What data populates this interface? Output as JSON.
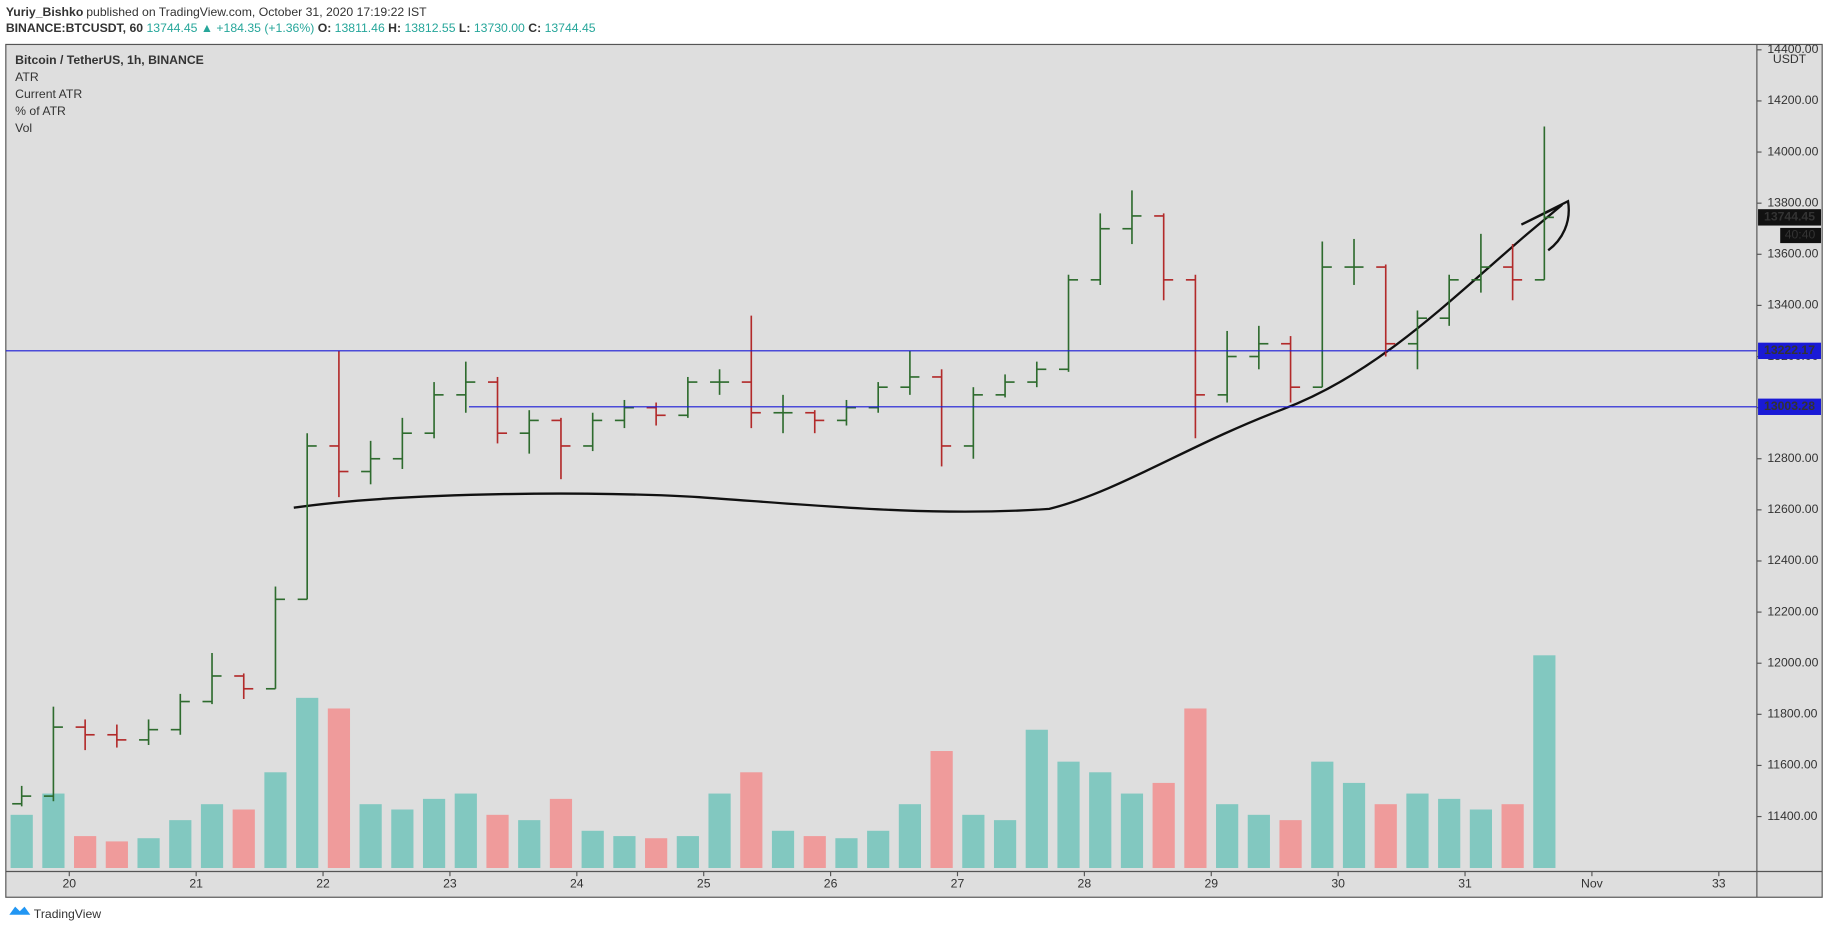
{
  "chart_data": {
    "type": "ohlc",
    "author": "Yuriy_Bishko",
    "published": "published on TradingView.com, October 31, 2020 17:19:22 IST",
    "symbol": "BINANCE:BTCUSDT, 60",
    "last_price": "13744.45",
    "change": "▲ +184.35 (+1.36%)",
    "ohlc_labels": [
      "O:",
      "13811.46",
      "H:",
      "13812.55",
      "L:",
      "13730.00",
      "C:",
      "13744.45"
    ],
    "legend": [
      "Bitcoin / TetherUS, 1h, BINANCE",
      "ATR",
      "Current ATR",
      "% of ATR",
      "Vol"
    ],
    "currency": "USDT",
    "countdown": "40:40",
    "brand": "TradingView",
    "levels": [
      {
        "value": 13222.17,
        "label": "13222.17",
        "color": "#1a1ad6",
        "from": 19.5
      },
      {
        "value": 13003.28,
        "label": "13003.28",
        "color": "#1a1ad6",
        "from": 23.15
      }
    ],
    "last_marker": {
      "value": 13744.45,
      "label": "13744.45"
    },
    "up_color": "#2e6b2e",
    "down_color": "#b22a2a",
    "vol_up_color": "#82c8c0",
    "vol_down_color": "#ef9b9b",
    "x": [
      19.5,
      19.75,
      20,
      20.25,
      20.5,
      20.75,
      21,
      21.25,
      21.5,
      21.75,
      22,
      22.25,
      22.5,
      22.75,
      23,
      23.25,
      23.5,
      23.75,
      24,
      24.25,
      24.5,
      24.75,
      25,
      25.25,
      25.5,
      25.75,
      26,
      26.25,
      26.5,
      26.75,
      27,
      27.25,
      27.5,
      27.75,
      28,
      28.25,
      28.5,
      28.75,
      29,
      29.25,
      29.5,
      29.75,
      30,
      30.25,
      30.5,
      30.75,
      31,
      31.25,
      31.5
    ],
    "open": [
      11450,
      11480,
      11750,
      11720,
      11700,
      11740,
      11850,
      11950,
      11900,
      12250,
      12850,
      12750,
      12800,
      12900,
      13050,
      13100,
      12900,
      12950,
      12850,
      12950,
      13000,
      12970,
      13100,
      13100,
      12980,
      12980,
      12950,
      13000,
      13080,
      13120,
      12850,
      13050,
      13100,
      13150,
      13500,
      13700,
      13750,
      13500,
      13050,
      13200,
      13250,
      13080,
      13550,
      13550,
      13250,
      13350,
      13500,
      13550,
      13500
    ],
    "high": [
      11520,
      11830,
      11780,
      11760,
      11780,
      11880,
      12040,
      11960,
      12300,
      12900,
      13222,
      12870,
      12960,
      13100,
      13180,
      13120,
      12990,
      12960,
      12980,
      13030,
      13020,
      13120,
      13150,
      13360,
      13050,
      12990,
      13030,
      13100,
      13222,
      13150,
      13080,
      13130,
      13180,
      13520,
      13760,
      13850,
      13760,
      13520,
      13300,
      13320,
      13280,
      13650,
      13660,
      13560,
      13380,
      13520,
      13680,
      13640,
      14100
    ],
    "low": [
      11440,
      11460,
      11660,
      11670,
      11680,
      11720,
      11840,
      11860,
      11900,
      12250,
      12650,
      12700,
      12760,
      12880,
      12980,
      12860,
      12820,
      12720,
      12830,
      12920,
      12930,
      12960,
      13050,
      12920,
      12900,
      12900,
      12930,
      12980,
      13050,
      12770,
      12800,
      13040,
      13080,
      13140,
      13480,
      13640,
      13420,
      12880,
      13020,
      13150,
      13020,
      13080,
      13480,
      13200,
      13150,
      13320,
      13450,
      13420,
      13500
    ],
    "close": [
      11480,
      11750,
      11720,
      11700,
      11740,
      11850,
      11950,
      11900,
      12250,
      12850,
      12750,
      12800,
      12900,
      13050,
      13100,
      12900,
      12950,
      12850,
      12950,
      13000,
      12970,
      13100,
      13100,
      12980,
      12980,
      12950,
      13000,
      13080,
      13120,
      12850,
      13050,
      13100,
      13150,
      13500,
      13700,
      13750,
      13500,
      13050,
      13200,
      13250,
      13080,
      13550,
      13550,
      13250,
      13350,
      13500,
      13550,
      13500,
      13744.45
    ],
    "volume": [
      500,
      700,
      300,
      250,
      280,
      450,
      600,
      550,
      900,
      1600,
      1500,
      600,
      550,
      650,
      700,
      500,
      450,
      650,
      350,
      300,
      280,
      300,
      700,
      900,
      350,
      300,
      280,
      350,
      600,
      1100,
      500,
      450,
      1300,
      1000,
      900,
      700,
      800,
      1500,
      600,
      500,
      450,
      1000,
      800,
      600,
      700,
      650,
      550,
      600,
      2000
    ],
    "volume_ylim": [
      0,
      2200
    ],
    "xlim": [
      19.5,
      33.3
    ],
    "ylim": [
      11185,
      14421
    ],
    "yticks": [
      {
        "value": 11400,
        "label": "11400.00"
      },
      {
        "value": 11600,
        "label": "11600.00"
      },
      {
        "value": 11800,
        "label": "11800.00"
      },
      {
        "value": 12000,
        "label": "12000.00"
      },
      {
        "value": 12200,
        "label": "12200.00"
      },
      {
        "value": 12400,
        "label": "12400.00"
      },
      {
        "value": 12600,
        "label": "12600.00"
      },
      {
        "value": 12800,
        "label": "12800.00"
      },
      {
        "value": 13000,
        "label": "13000.00"
      },
      {
        "value": 13200,
        "label": "13200.00"
      },
      {
        "value": 13400,
        "label": "13400.00"
      },
      {
        "value": 13600,
        "label": "13600.00"
      },
      {
        "value": 13800,
        "label": "13800.00"
      },
      {
        "value": 14000,
        "label": "14000.00"
      },
      {
        "value": 14200,
        "label": "14200.00"
      },
      {
        "value": 14400,
        "label": "14400.00"
      }
    ],
    "xticks": [
      20,
      21,
      22,
      23,
      24,
      25,
      26,
      27,
      28,
      29,
      30,
      31,
      {
        "value": 32,
        "label": "Nov"
      },
      33
    ]
  }
}
